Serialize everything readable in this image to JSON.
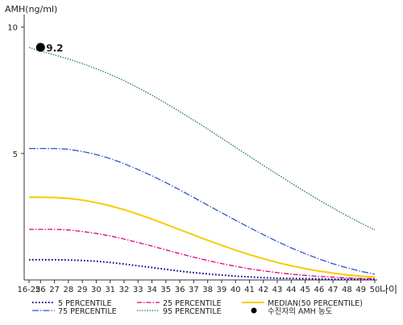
{
  "chart_data": {
    "type": "line",
    "ylabel": "AMH(ng/ml)",
    "xlabel": "나이",
    "ylim": [
      0,
      10.5
    ],
    "yticks": [
      "5",
      "10"
    ],
    "categories": [
      "16-25",
      "26",
      "27",
      "28",
      "29",
      "30",
      "31",
      "32",
      "33",
      "34",
      "35",
      "36",
      "37",
      "38",
      "39",
      "40",
      "41",
      "42",
      "43",
      "44",
      "45",
      "46",
      "47",
      "48",
      "49",
      "50"
    ],
    "series": [
      {
        "key": "p5",
        "name": "5 PERCENTILE",
        "color": "#00008b",
        "dash": "1.6,2.4",
        "width": 2,
        "values": [
          0.8,
          0.8,
          0.8,
          0.79,
          0.77,
          0.74,
          0.69,
          0.63,
          0.56,
          0.49,
          0.42,
          0.35,
          0.29,
          0.24,
          0.19,
          0.15,
          0.12,
          0.09,
          0.07,
          0.06,
          0.05,
          0.04,
          0.03,
          0.03,
          0.02,
          0.02
        ]
      },
      {
        "key": "p25",
        "name": "25 PERCENTILE",
        "color": "#e0007a",
        "dash": "6,2,1.5,2",
        "width": 1.3,
        "values": [
          2,
          2,
          2,
          1.98,
          1.92,
          1.84,
          1.74,
          1.62,
          1.48,
          1.34,
          1.19,
          1.04,
          0.9,
          0.77,
          0.65,
          0.54,
          0.44,
          0.36,
          0.29,
          0.23,
          0.18,
          0.14,
          0.11,
          0.08,
          0.06,
          0.05
        ]
      },
      {
        "key": "p50",
        "name": "MEDIAN(50 PERCENTILE)",
        "color": "#f5cc00",
        "dash": "",
        "width": 2,
        "values": [
          3.27,
          3.27,
          3.26,
          3.23,
          3.16,
          3.06,
          2.93,
          2.78,
          2.6,
          2.41,
          2.2,
          1.99,
          1.78,
          1.57,
          1.37,
          1.18,
          1.0,
          0.84,
          0.69,
          0.56,
          0.45,
          0.35,
          0.27,
          0.2,
          0.15,
          0.11
        ]
      },
      {
        "key": "p75",
        "name": "75 PERCENTILE",
        "color": "#2f55c8",
        "dash": "8,2,1.5,2",
        "width": 1.3,
        "values": [
          5.2,
          5.2,
          5.2,
          5.17,
          5.08,
          4.96,
          4.8,
          4.6,
          4.37,
          4.12,
          3.85,
          3.56,
          3.26,
          2.96,
          2.66,
          2.36,
          2.07,
          1.79,
          1.52,
          1.27,
          1.04,
          0.83,
          0.64,
          0.48,
          0.34,
          0.23
        ]
      },
      {
        "key": "p95",
        "name": "95 PERCENTILE",
        "color": "#1e7a3c",
        "dash": "1.5,1.6",
        "width": 1.3,
        "values": [
          9.2,
          9.05,
          8.9,
          8.74,
          8.56,
          8.36,
          8.13,
          7.88,
          7.6,
          7.31,
          6.99,
          6.66,
          6.32,
          5.97,
          5.61,
          5.25,
          4.89,
          4.53,
          4.18,
          3.83,
          3.49,
          3.16,
          2.84,
          2.54,
          2.25,
          1.98
        ]
      }
    ],
    "highlight_point": {
      "x": "26",
      "y": 9.2,
      "label": "9.2",
      "color": "#000000"
    },
    "legend": {
      "items": [
        {
          "series": "p5",
          "label": "5 PERCENTILE"
        },
        {
          "series": "p25",
          "label": "25 PERCENTILE"
        },
        {
          "series": "p50",
          "label": "MEDIAN(50 PERCENTILE)"
        },
        {
          "series": "p75",
          "label": "75 PERCENTILE"
        },
        {
          "series": "p95",
          "label": "95 PERCENTILE"
        },
        {
          "series": "marker",
          "label": "수진자의 AMH 농도"
        }
      ],
      "position": "bottom"
    },
    "grid": false
  }
}
